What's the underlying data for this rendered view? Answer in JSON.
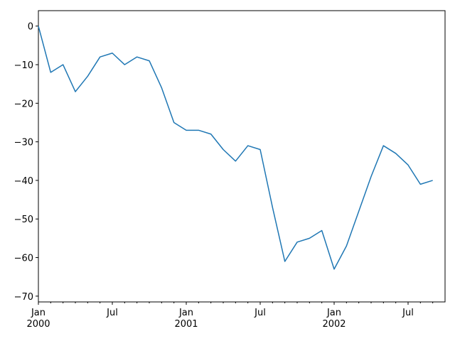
{
  "chart_data": {
    "type": "line",
    "x": [
      "2000-01",
      "2000-02",
      "2000-03",
      "2000-04",
      "2000-05",
      "2000-06",
      "2000-07",
      "2000-08",
      "2000-09",
      "2000-10",
      "2000-11",
      "2000-12",
      "2001-01",
      "2001-02",
      "2001-03",
      "2001-04",
      "2001-05",
      "2001-06",
      "2001-07",
      "2001-08",
      "2001-09",
      "2001-10",
      "2001-11",
      "2001-12",
      "2002-01",
      "2002-02",
      "2002-03",
      "2002-04",
      "2002-05",
      "2002-06",
      "2002-07",
      "2002-08",
      "2002-09"
    ],
    "series": [
      {
        "color": "#1f77b4",
        "values": [
          0,
          -12,
          -10,
          -17,
          -13,
          -8,
          -7,
          -10,
          -8,
          -9,
          -16,
          -25,
          -27,
          -27,
          -28,
          -32,
          -35,
          -31,
          -32,
          -47,
          -61,
          -56,
          -55,
          -53,
          -63,
          -57,
          -48,
          -39,
          -31,
          -33,
          -36,
          -41,
          -40
        ]
      }
    ],
    "xlim": [
      "2000-01",
      "2002-10"
    ],
    "xticks": [
      {
        "value": "2000-01",
        "label": "Jan\n2000"
      },
      {
        "value": "2000-07",
        "label": "Jul"
      },
      {
        "value": "2001-01",
        "label": "Jan\n2001"
      },
      {
        "value": "2001-07",
        "label": "Jul"
      },
      {
        "value": "2002-01",
        "label": "Jan\n2002"
      },
      {
        "value": "2002-07",
        "label": "Jul"
      }
    ],
    "ylim": [
      -71.5,
      4
    ],
    "yticks": [
      0,
      {
        "value": -10,
        "label": "−10"
      },
      {
        "value": -20,
        "label": "−20"
      },
      {
        "value": -30,
        "label": "−30"
      },
      {
        "value": -40,
        "label": "−40"
      },
      {
        "value": -50,
        "label": "−50"
      },
      {
        "value": -60,
        "label": "−60"
      },
      {
        "value": -70,
        "label": "−70"
      }
    ],
    "grid": false
  }
}
